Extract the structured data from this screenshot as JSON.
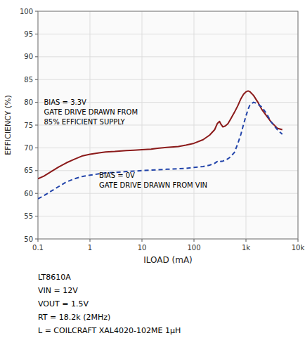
{
  "chart_data": {
    "type": "line",
    "ylabel": "EFFICIENCY (%)",
    "xlabel": "ILOAD (mA)",
    "log": "x",
    "grid": true,
    "xlim": [
      0.1,
      10000
    ],
    "xticks": [
      0.1,
      1,
      10,
      100,
      {
        "value": 1000,
        "label": "1k"
      },
      {
        "value": 10000,
        "label": "10k"
      }
    ],
    "ylim": [
      50,
      100
    ],
    "yticks": [
      50,
      55,
      60,
      65,
      70,
      75,
      80,
      85,
      90,
      95,
      100
    ],
    "series": [
      {
        "color": "#8B1A1A",
        "line_style": "solid",
        "x": [
          0.1,
          0.13,
          0.18,
          0.25,
          0.35,
          0.5,
          0.7,
          1.0,
          1.5,
          2.0,
          3.0,
          5.0,
          7.0,
          10,
          15,
          20,
          30,
          50,
          70,
          100,
          150,
          200,
          250,
          280,
          310,
          330,
          360,
          400,
          450,
          500,
          600,
          700,
          800,
          900,
          1000,
          1100,
          1200,
          1400,
          1700,
          2000,
          2500,
          3000,
          4000,
          5000
        ],
        "values": [
          63.2,
          63.8,
          64.8,
          65.8,
          66.7,
          67.5,
          68.2,
          68.6,
          68.9,
          69.1,
          69.2,
          69.4,
          69.5,
          69.6,
          69.7,
          69.9,
          70.1,
          70.3,
          70.6,
          71.0,
          71.8,
          72.8,
          74.0,
          75.3,
          75.8,
          75.2,
          74.6,
          74.8,
          75.3,
          76.2,
          77.8,
          79.3,
          80.8,
          81.8,
          82.3,
          82.5,
          82.3,
          81.5,
          80.0,
          78.5,
          77.0,
          75.8,
          74.3,
          74.0
        ]
      },
      {
        "color": "#2244AA",
        "line_style": "dashed",
        "x": [
          0.1,
          0.13,
          0.18,
          0.25,
          0.35,
          0.5,
          0.7,
          1.0,
          1.5,
          2.0,
          3.0,
          5.0,
          7.0,
          10,
          15,
          20,
          30,
          50,
          70,
          100,
          150,
          200,
          250,
          280,
          310,
          330,
          360,
          400,
          450,
          500,
          600,
          700,
          800,
          900,
          1000,
          1100,
          1200,
          1400,
          1600,
          2000,
          2500,
          3000,
          4000,
          5000
        ],
        "values": [
          58.8,
          59.5,
          60.5,
          61.5,
          62.5,
          63.2,
          63.7,
          64.0,
          64.3,
          64.5,
          64.6,
          64.8,
          64.9,
          65.0,
          65.1,
          65.2,
          65.3,
          65.4,
          65.5,
          65.7,
          65.9,
          66.2,
          66.6,
          67.0,
          67.2,
          67.0,
          67.1,
          67.3,
          67.6,
          68.0,
          69.0,
          71.0,
          73.0,
          75.2,
          77.0,
          78.5,
          79.5,
          80.0,
          79.8,
          79.0,
          77.5,
          75.8,
          74.0,
          73.0
        ]
      }
    ],
    "annotations": [
      {
        "text": "BIAS = 3.3V",
        "x": 0.13,
        "y": 79.5
      },
      {
        "text": "GATE DRIVE DRAWN FROM",
        "x": 0.13,
        "y": 77.3
      },
      {
        "text": "85% EFFICIENT SUPPLY",
        "x": 0.13,
        "y": 75.1
      },
      {
        "text": "BIAS = 0V",
        "x": 1.5,
        "y": 63.5
      },
      {
        "text": "GATE DRIVE DRAWN FROM VIN",
        "x": 1.5,
        "y": 61.3
      }
    ],
    "caption": [
      "LT8610A",
      "VIN = 12V",
      "VOUT = 1.5V",
      "RT = 18.2k (2MHz)",
      "L = COILCRAFT XAL4020-102ME 1μH"
    ]
  }
}
